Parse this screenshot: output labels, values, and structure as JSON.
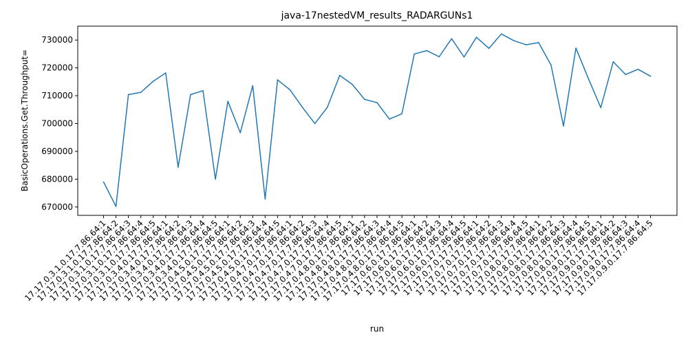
{
  "chart_data": {
    "type": "line",
    "title": "java-17nestedVM_results_RADARGUNs1",
    "xlabel": "run",
    "ylabel": "BasicOperations.Get.Throughput=",
    "ylim": [
      667000,
      735000
    ],
    "yticks": [
      670000,
      680000,
      690000,
      700000,
      710000,
      720000,
      730000
    ],
    "grid": false,
    "legend": "none",
    "line_color": "#1f77b4",
    "categories": [
      "17.17.0.3.1.0.17.7.86.64:1",
      "17.17.0.3.1.0.17.7.86.64:2",
      "17.17.0.3.1.0.17.7.86.64:3",
      "17.17.0.3.1.0.17.7.86.64:4",
      "17.17.0.3.1.0.17.7.86.64:5",
      "17.17.0.3.4.0.17.7.86.64:1",
      "17.17.0.3.4.0.17.7.86.64:2",
      "17.17.0.3.4.0.17.7.86.64:3",
      "17.17.0.3.4.0.17.7.86.64:4",
      "17.17.0.3.4.0.17.7.86.64:5",
      "17.17.0.4.5.0.17.7.86.64:1",
      "17.17.0.4.5.0.17.7.86.64:2",
      "17.17.0.4.5.0.17.7.86.64:3",
      "17.17.0.4.5.0.17.7.86.64:4",
      "17.17.0.4.5.0.17.7.86.64:5",
      "17.17.0.4.7.0.17.7.86.64:1",
      "17.17.0.4.7.0.17.7.86.64:2",
      "17.17.0.4.7.0.17.7.86.64:3",
      "17.17.0.4.7.0.17.7.86.64:4",
      "17.17.0.4.7.0.17.7.86.64:5",
      "17.17.0.4.8.0.17.7.86.64:1",
      "17.17.0.4.8.0.17.7.86.64:2",
      "17.17.0.4.8.0.17.7.86.64:3",
      "17.17.0.4.8.0.17.7.86.64:4",
      "17.17.0.4.8.0.17.7.86.64:5",
      "17.17.0.6.0.17.7.86.64:1",
      "17.17.0.6.0.17.7.86.64:2",
      "17.17.0.6.0.17.7.86.64:3",
      "17.17.0.6.0.17.7.86.64:4",
      "17.17.0.6.0.17.7.86.64:5",
      "17.17.0.7.0.17.7.86.64:1",
      "17.17.0.7.0.17.7.86.64:2",
      "17.17.0.7.0.17.7.86.64:3",
      "17.17.0.7.0.17.7.86.64:4",
      "17.17.0.7.0.17.7.86.64:5",
      "17.17.0.8.0.17.7.86.64:1",
      "17.17.0.8.0.17.7.86.64:2",
      "17.17.0.8.0.17.7.86.64:3",
      "17.17.0.8.0.17.7.86.64:4",
      "17.17.0.8.0.17.7.86.64:5",
      "17.17.0.9.0.17.7.86.64:1",
      "17.17.0.9.0.17.7.86.64:2",
      "17.17.0.9.0.17.7.86.64:3",
      "17.17.0.9.0.17.7.86.64:4",
      "17.17.0.9.0.17.7.86.64:5"
    ],
    "series": [
      {
        "values": [
          679000,
          670200,
          710400,
          711200,
          715200,
          718200,
          684300,
          710400,
          711800,
          680000,
          708000,
          696700,
          713600,
          672900,
          715700,
          712100,
          705800,
          700000,
          705800,
          717300,
          714100,
          708700,
          707500,
          701600,
          703500,
          725000,
          726200,
          724000,
          730500,
          723900,
          731000,
          727000,
          732200,
          729800,
          728300,
          729100,
          721000,
          699100,
          727100,
          716200,
          705700,
          722200,
          717600,
          719500,
          717000
        ]
      }
    ]
  }
}
